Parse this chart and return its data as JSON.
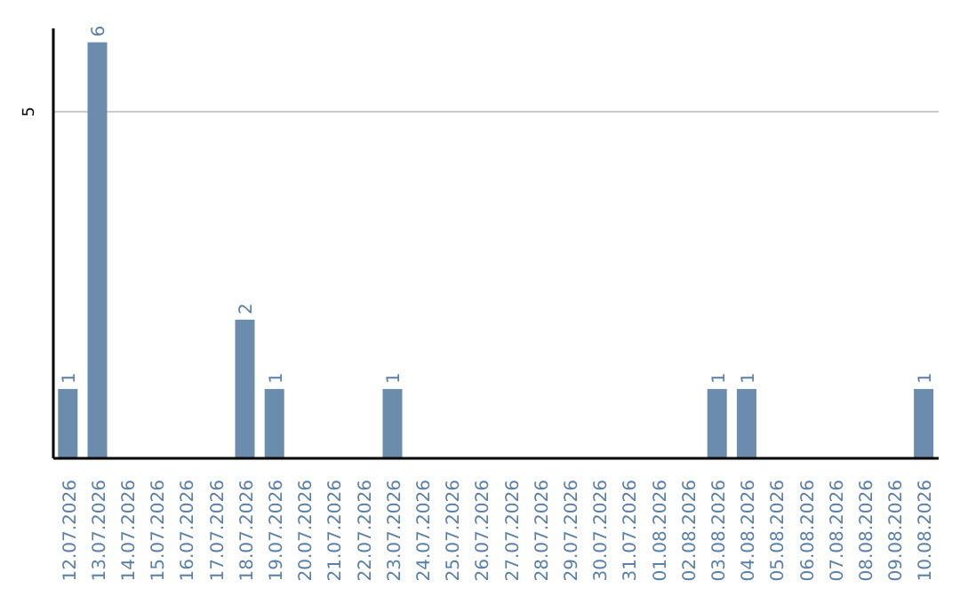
{
  "chart_data": {
    "type": "bar",
    "categories": [
      "12.07.2026",
      "13.07.2026",
      "14.07.2026",
      "15.07.2026",
      "16.07.2026",
      "17.07.2026",
      "18.07.2026",
      "19.07.2026",
      "20.07.2026",
      "21.07.2026",
      "22.07.2026",
      "23.07.2026",
      "24.07.2026",
      "25.07.2026",
      "26.07.2026",
      "27.07.2026",
      "28.07.2026",
      "29.07.2026",
      "30.07.2026",
      "31.07.2026",
      "01.08.2026",
      "02.08.2026",
      "03.08.2026",
      "04.08.2026",
      "05.08.2026",
      "06.08.2026",
      "07.08.2026",
      "08.08.2026",
      "09.08.2026",
      "10.08.2026"
    ],
    "values": [
      1,
      6,
      0,
      0,
      0,
      0,
      2,
      1,
      0,
      0,
      0,
      1,
      0,
      0,
      0,
      0,
      0,
      0,
      0,
      0,
      0,
      0,
      1,
      1,
      0,
      0,
      0,
      0,
      0,
      1
    ],
    "value_labels": [
      "1",
      "6",
      null,
      null,
      null,
      null,
      "2",
      "1",
      null,
      null,
      null,
      "1",
      null,
      null,
      null,
      null,
      null,
      null,
      null,
      null,
      null,
      null,
      "1",
      "1",
      null,
      null,
      null,
      null,
      null,
      "1"
    ],
    "color": "#6b8cac",
    "ylim": [
      0,
      6.2
    ],
    "yticks": [
      5
    ],
    "grid": "y"
  }
}
